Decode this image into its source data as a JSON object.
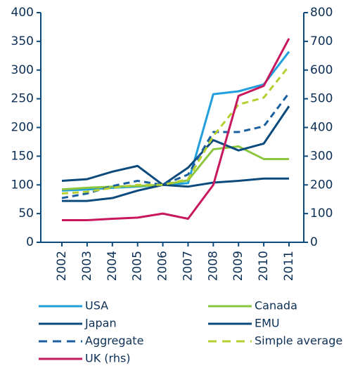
{
  "chart_data": {
    "type": "line",
    "categories": [
      "2002",
      "2003",
      "2004",
      "2005",
      "2006",
      "2007",
      "2008",
      "2009",
      "2010",
      "2011"
    ],
    "series": [
      {
        "name": "USA",
        "color": "#1fa0dd",
        "style": "solid",
        "values": [
          90,
          92,
          95,
          97,
          100,
          103,
          258,
          263,
          275,
          332
        ]
      },
      {
        "name": "Canada",
        "color": "#8cc63f",
        "style": "solid",
        "values": [
          92,
          95,
          97,
          98,
          100,
          108,
          162,
          167,
          145,
          145
        ]
      },
      {
        "name": "Japan",
        "color": "#0b4a7d",
        "style": "solid",
        "values": [
          107,
          110,
          123,
          133,
          100,
          97,
          104,
          107,
          111,
          111
        ]
      },
      {
        "name": "EMU",
        "color": "#0b4a7d",
        "style": "solid",
        "values": [
          72,
          72,
          77,
          90,
          100,
          130,
          178,
          160,
          172,
          237
        ]
      },
      {
        "name": "Aggregate",
        "color": "#1a5fa0",
        "style": "dashed",
        "values": [
          77,
          85,
          98,
          107,
          100,
          118,
          192,
          192,
          202,
          260
        ]
      },
      {
        "name": "Simple average",
        "color": "#b5cf30",
        "style": "dashed",
        "values": [
          85,
          88,
          95,
          100,
          100,
          110,
          185,
          240,
          252,
          307
        ]
      },
      {
        "name": "UK (rhs)",
        "color": "#c8175d",
        "style": "solid",
        "axis": "y2",
        "values": [
          77,
          77,
          82,
          86,
          100,
          82,
          200,
          510,
          545,
          710
        ]
      }
    ],
    "ylim": [
      0,
      400
    ],
    "yticks": [
      0,
      50,
      100,
      150,
      200,
      250,
      300,
      350,
      400
    ],
    "y2lim": [
      0,
      800
    ],
    "y2ticks": [
      0,
      100,
      200,
      300,
      400,
      500,
      600,
      700,
      800
    ],
    "grid": false,
    "legend": "bottom"
  }
}
